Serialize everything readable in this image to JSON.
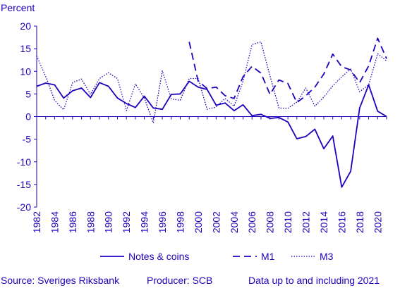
{
  "chart_data": {
    "type": "line",
    "ylabel": "Percent",
    "ylim": [
      -20,
      20
    ],
    "yticks": [
      20,
      15,
      10,
      5,
      0,
      -5,
      -10,
      -15,
      -20
    ],
    "xlim": [
      1982,
      2021
    ],
    "xticks": [
      1982,
      1984,
      1986,
      1988,
      1990,
      1992,
      1994,
      1996,
      1998,
      2000,
      2002,
      2004,
      2006,
      2008,
      2010,
      2012,
      2014,
      2016,
      2018,
      2020
    ],
    "grid": false,
    "legend_position": "bottom",
    "line_color": "#1e00be",
    "series": [
      {
        "name": "Notes & coins",
        "style": "solid",
        "x": [
          1982,
          1983,
          1984,
          1985,
          1986,
          1987,
          1988,
          1989,
          1990,
          1991,
          1992,
          1993,
          1994,
          1995,
          1996,
          1997,
          1998,
          1999,
          2000,
          2001,
          2002,
          2003,
          2004,
          2005,
          2006,
          2007,
          2008,
          2009,
          2010,
          2011,
          2012,
          2013,
          2014,
          2015,
          2016,
          2017,
          2018,
          2019,
          2020,
          2021
        ],
        "values": [
          6.7,
          7.4,
          7.0,
          4.1,
          5.7,
          6.3,
          4.2,
          7.5,
          6.7,
          4.1,
          2.9,
          2.0,
          4.5,
          1.9,
          1.6,
          4.9,
          5.0,
          7.8,
          6.5,
          6.0,
          2.5,
          3.0,
          1.3,
          2.6,
          0.2,
          0.5,
          -0.4,
          -0.2,
          -1.2,
          -4.9,
          -4.4,
          -2.8,
          -7.1,
          -4.3,
          -15.6,
          -12.1,
          1.9,
          7.0,
          1.2,
          0.0
        ]
      },
      {
        "name": "M1",
        "style": "dashed",
        "x": [
          1999,
          2000,
          2001,
          2002,
          2003,
          2004,
          2005,
          2006,
          2007,
          2008,
          2009,
          2010,
          2011,
          2012,
          2013,
          2014,
          2015,
          2016,
          2017,
          2018,
          2019,
          2020,
          2021
        ],
        "values": [
          16.5,
          7.8,
          6.2,
          6.5,
          4.6,
          4.0,
          8.8,
          11.1,
          9.6,
          4.9,
          8.1,
          7.3,
          3.1,
          4.6,
          6.5,
          9.4,
          13.8,
          11.0,
          10.3,
          7.5,
          11.2,
          17.3,
          12.8
        ]
      },
      {
        "name": "M3",
        "style": "dotted",
        "x": [
          1982,
          1983,
          1984,
          1985,
          1986,
          1987,
          1988,
          1989,
          1990,
          1991,
          1992,
          1993,
          1994,
          1995,
          1996,
          1997,
          1998,
          1999,
          2000,
          2001,
          2002,
          2003,
          2004,
          2005,
          2006,
          2007,
          2008,
          2009,
          2010,
          2011,
          2012,
          2013,
          2014,
          2015,
          2016,
          2017,
          2018,
          2019,
          2020,
          2021
        ],
        "values": [
          13.4,
          8.9,
          3.6,
          1.5,
          7.5,
          8.3,
          4.9,
          8.4,
          9.7,
          8.4,
          1.3,
          7.2,
          4.1,
          -1.4,
          10.1,
          3.9,
          3.6,
          8.4,
          8.4,
          1.6,
          2.1,
          4.0,
          2.3,
          7.8,
          15.9,
          16.5,
          9.0,
          1.9,
          1.8,
          3.2,
          6.3,
          2.3,
          4.3,
          6.8,
          8.8,
          10.5,
          5.5,
          7.0,
          13.9,
          12.3
        ]
      }
    ]
  },
  "footer": {
    "source": "Source: Sveriges Riksbank",
    "producer": "Producer: SCB",
    "note": "Data up to and including 2021"
  }
}
